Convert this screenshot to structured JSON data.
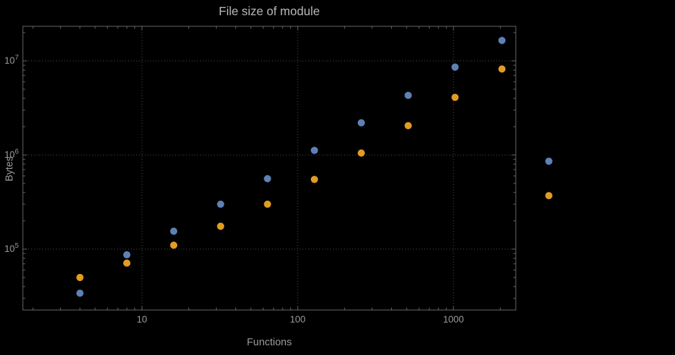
{
  "figure": {
    "background": "#000000",
    "frame_color": "#6a6a68",
    "grid_color": "#565656",
    "tick_label_color": "#9c9c9a",
    "title_color": "#b9b9b7"
  },
  "chart_data": {
    "type": "scatter",
    "title": "File size of module",
    "xlabel": "Functions",
    "ylabel": "Bytes",
    "xscale": "log",
    "yscale": "log",
    "xlim": [
      1.7,
      2500
    ],
    "ylim": [
      22000,
      23000000
    ],
    "xticks": [
      10,
      100,
      1000
    ],
    "xtick_labels": [
      "10",
      "100",
      "1000"
    ],
    "yticks": [
      100000,
      1000000,
      10000000
    ],
    "ytick_exponents": [
      5,
      6,
      7
    ],
    "grid": "major-dotted",
    "legend": "none",
    "series": [
      {
        "name": "series-blue",
        "color": "#5e81b5",
        "x": [
          4,
          8,
          16,
          32,
          64,
          128,
          256,
          512,
          1024,
          2048,
          4096
        ],
        "y": [
          34000,
          87000,
          155000,
          300000,
          560000,
          1120000,
          2200000,
          4300000,
          8600000,
          16500000,
          860000
        ]
      },
      {
        "name": "series-orange",
        "color": "#e19c24",
        "x": [
          4,
          8,
          16,
          32,
          64,
          128,
          256,
          512,
          1024,
          2048,
          4096
        ],
        "y": [
          50000,
          71000,
          110000,
          175000,
          300000,
          550000,
          1050000,
          2050000,
          4100000,
          8200000,
          370000
        ]
      }
    ]
  }
}
